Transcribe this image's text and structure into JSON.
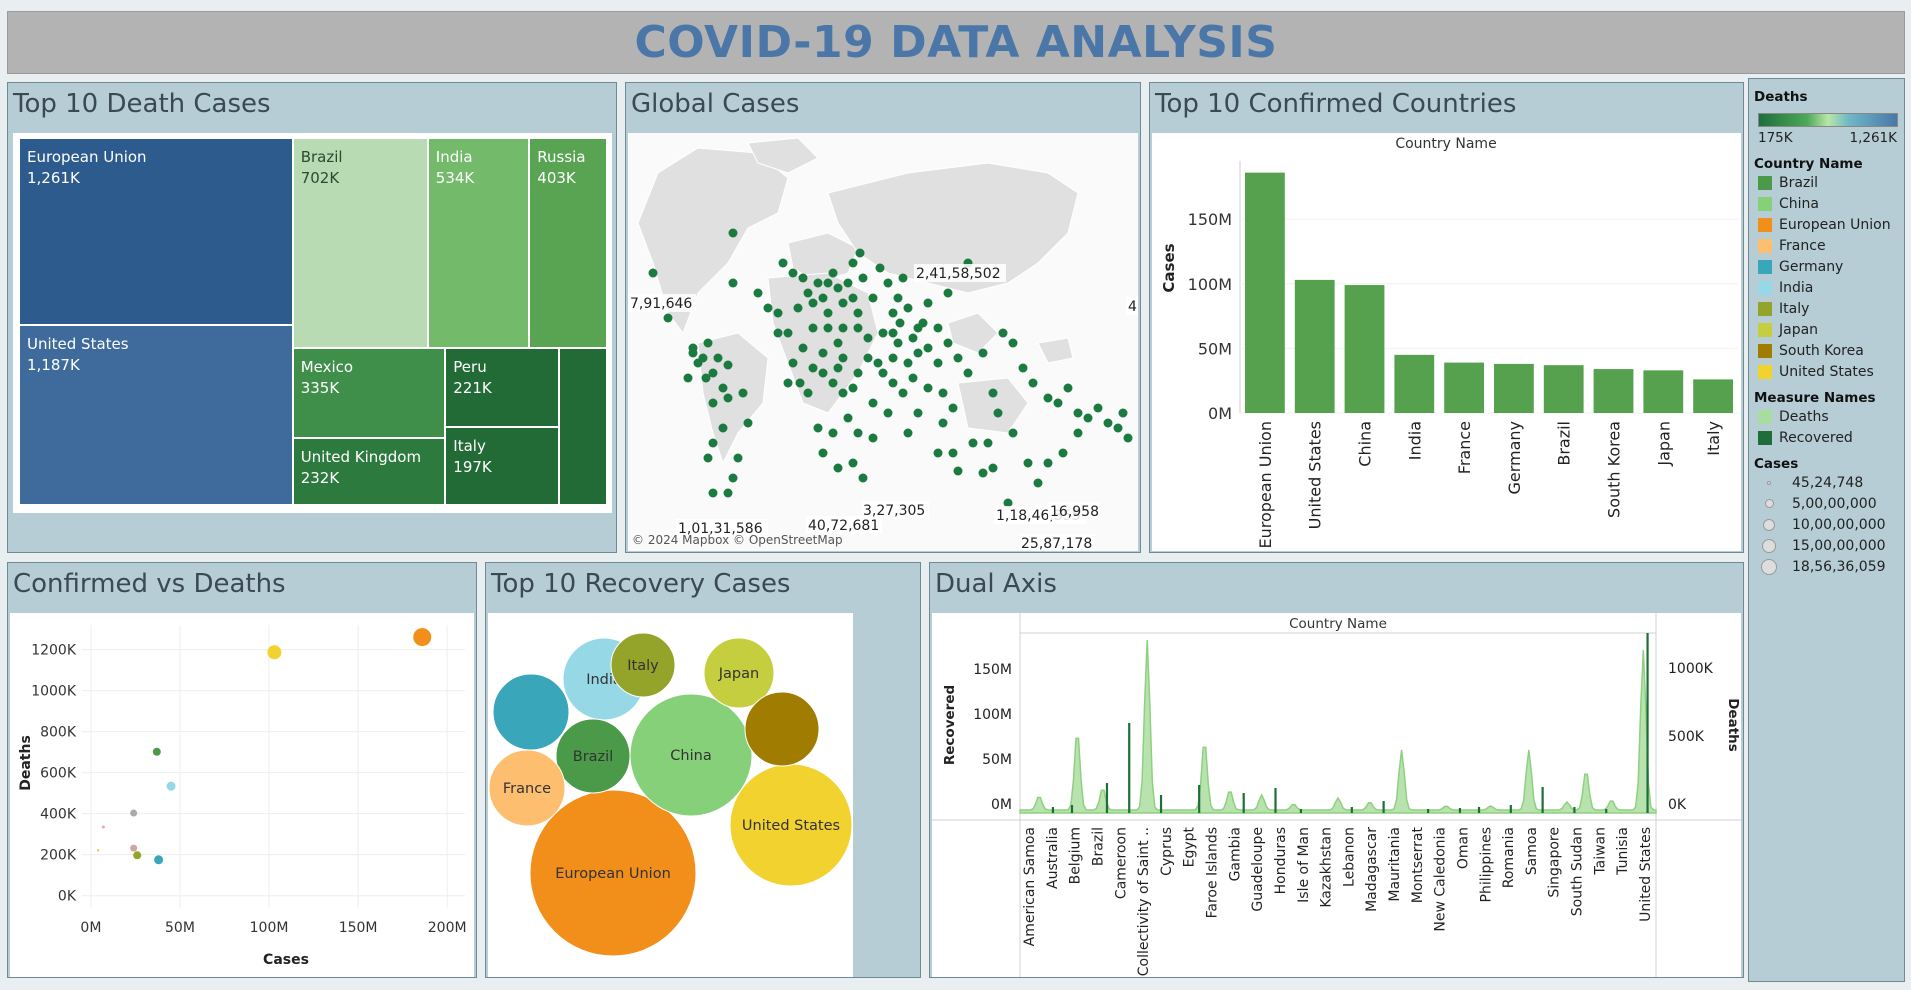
{
  "title": "COVID-19 DATA ANALYSIS",
  "panels": {
    "treemap": "Top 10 Death Cases",
    "map": "Global Cases",
    "bar": "Top 10 Confirmed Countries",
    "scatter": "Confirmed vs Deaths",
    "bubble": "Top 10 Recovery Cases",
    "dual": "Dual Axis"
  },
  "map_attribution": "© 2024 Mapbox © OpenStreetMap",
  "map_labels": [
    "7,91,646",
    "2,41,58,502",
    "4",
    "1,01,31,586",
    "40,72,681",
    "3,27,305",
    "1,18,46,355",
    "16,958",
    "25,87,178"
  ],
  "legend": {
    "deaths_title": "Deaths",
    "deaths_min": "175K",
    "deaths_max": "1,261K",
    "country_title": "Country Name",
    "countries": [
      {
        "name": "Brazil",
        "color": "#4a9a4a"
      },
      {
        "name": "China",
        "color": "#86d07a"
      },
      {
        "name": "European Union",
        "color": "#f28e1a"
      },
      {
        "name": "France",
        "color": "#fdbf6f"
      },
      {
        "name": "Germany",
        "color": "#3aa6b9"
      },
      {
        "name": "India",
        "color": "#96d8e6"
      },
      {
        "name": "Italy",
        "color": "#94a32a"
      },
      {
        "name": "Japan",
        "color": "#c5ce3f"
      },
      {
        "name": "South Korea",
        "color": "#a07d00"
      },
      {
        "name": "United States",
        "color": "#f2d22e"
      }
    ],
    "measure_title": "Measure Names",
    "measures": [
      {
        "name": "Deaths",
        "color": "#a8dca0"
      },
      {
        "name": "Recovered",
        "color": "#1e6e3a"
      }
    ],
    "cases_title": "Cases",
    "cases_sizes": [
      "45,24,748",
      "5,00,00,000",
      "10,00,00,000",
      "15,00,00,000",
      "18,56,36,059"
    ]
  },
  "chart_data": [
    {
      "type": "treemap",
      "title": "Top 10 Death Cases",
      "items": [
        {
          "name": "European Union",
          "label": "1,261K",
          "value": 1261
        },
        {
          "name": "United States",
          "label": "1,187K",
          "value": 1187
        },
        {
          "name": "Brazil",
          "label": "702K",
          "value": 702
        },
        {
          "name": "India",
          "label": "534K",
          "value": 534
        },
        {
          "name": "Russia",
          "label": "403K",
          "value": 403
        },
        {
          "name": "Mexico",
          "label": "335K",
          "value": 335
        },
        {
          "name": "United Kingdom",
          "label": "232K",
          "value": 232
        },
        {
          "name": "Peru",
          "label": "221K",
          "value": 221
        },
        {
          "name": "Italy",
          "label": "197K",
          "value": 197
        },
        {
          "name": "",
          "label": "",
          "value": 175
        }
      ]
    },
    {
      "type": "bar",
      "title": "Top 10 Confirmed Countries",
      "header": "Country Name",
      "ylabel": "Cases",
      "yticks": [
        "0M",
        "50M",
        "100M",
        "150M"
      ],
      "ylim": [
        0,
        195
      ],
      "categories": [
        "European Union",
        "United States",
        "China",
        "India",
        "France",
        "Germany",
        "Brazil",
        "South Korea",
        "Japan",
        "Italy"
      ],
      "values": [
        186,
        103,
        99,
        45,
        39,
        38,
        37,
        34,
        33,
        26
      ]
    },
    {
      "type": "scatter",
      "title": "Confirmed vs Deaths",
      "xlabel": "Cases",
      "ylabel": "Deaths",
      "xticks": [
        "0M",
        "50M",
        "100M",
        "150M",
        "200M"
      ],
      "yticks": [
        "0K",
        "200K",
        "400K",
        "600K",
        "800K",
        "1000K",
        "1200K"
      ],
      "xlim": [
        -5,
        210
      ],
      "ylim": [
        -60,
        1320
      ],
      "points": [
        {
          "x": 186,
          "y": 1261,
          "color": "#f28e1a",
          "r": 9
        },
        {
          "x": 103,
          "y": 1187,
          "color": "#f2d22e",
          "r": 7
        },
        {
          "x": 37,
          "y": 702,
          "color": "#4a9a4a",
          "r": 4
        },
        {
          "x": 45,
          "y": 534,
          "color": "#96d8e6",
          "r": 4.5
        },
        {
          "x": 24,
          "y": 403,
          "color": "#aaaaaa",
          "r": 3.5
        },
        {
          "x": 24,
          "y": 232,
          "color": "#c9a9a0",
          "r": 3.5
        },
        {
          "x": 26,
          "y": 197,
          "color": "#94a32a",
          "r": 4
        },
        {
          "x": 38,
          "y": 175,
          "color": "#3aa6b9",
          "r": 4.5
        },
        {
          "x": 7,
          "y": 335,
          "color": "#f4a6a6",
          "r": 1.5
        },
        {
          "x": 4,
          "y": 221,
          "color": "#e6c85a",
          "r": 1.2
        }
      ]
    },
    {
      "type": "bubble",
      "title": "Top 10 Recovery Cases",
      "bubbles": [
        {
          "name": "European Union",
          "color": "#f28e1a"
        },
        {
          "name": "China",
          "color": "#86d07a"
        },
        {
          "name": "United States",
          "color": "#f2d22e"
        },
        {
          "name": "India",
          "color": "#96d8e6"
        },
        {
          "name": "Brazil",
          "color": "#4a9a4a"
        },
        {
          "name": "France",
          "color": "#fdbf6f"
        },
        {
          "name": "Japan",
          "color": "#c5ce3f"
        },
        {
          "name": "Italy",
          "color": "#94a32a"
        },
        {
          "name": "",
          "color": "#3aa6b9"
        },
        {
          "name": "",
          "color": "#a07d00"
        }
      ]
    },
    {
      "type": "area",
      "title": "Dual Axis",
      "header": "Country Name",
      "ylabel_left": "Recovered",
      "ylabel_right": "Deaths",
      "yticks_left": [
        "0M",
        "50M",
        "100M",
        "150M"
      ],
      "yticks_right": [
        "0K",
        "500K",
        "1000K"
      ],
      "categories": [
        "American Samoa",
        "Australia",
        "Belgium",
        "Brazil",
        "Cameroon",
        "Collectivity of Saint ..",
        "Cyprus",
        "Egypt",
        "Faroe Islands",
        "Gambia",
        "Guadeloupe",
        "Honduras",
        "Isle of Man",
        "Kazakhstan",
        "Lebanon",
        "Madagascar",
        "Mauritania",
        "Montserrat",
        "New Caledonia",
        "Oman",
        "Philippines",
        "Romania",
        "Samoa",
        "Singapore",
        "South Sudan",
        "Taiwan",
        "Tunisia",
        "United States"
      ]
    }
  ]
}
